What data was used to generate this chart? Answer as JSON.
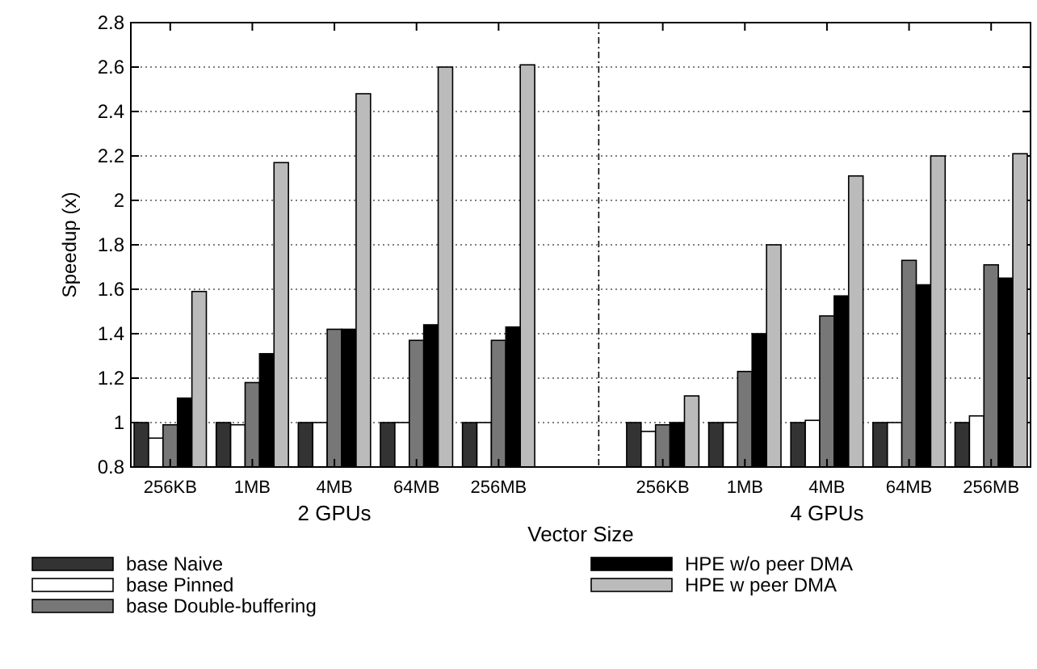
{
  "chart_data": {
    "type": "bar",
    "xlabel": "Vector Size",
    "ylabel": "Speedup (x)",
    "categories": [
      "256KB",
      "1MB",
      "4MB",
      "64MB",
      "256MB",
      null,
      "256KB",
      "1MB",
      "4MB",
      "64MB",
      "256MB"
    ],
    "series": [
      {
        "name": "base Naive",
        "color": "#333333",
        "values": [
          1,
          1,
          1,
          1,
          1,
          null,
          1,
          1,
          1,
          1,
          1
        ]
      },
      {
        "name": "base Pinned",
        "color": "#ffffff",
        "values": [
          0.93,
          0.99,
          1,
          1,
          1,
          null,
          0.96,
          1,
          1.01,
          1,
          1.03
        ]
      },
      {
        "name": "base Double-buffering",
        "color": "#777777",
        "values": [
          0.99,
          1.18,
          1.42,
          1.37,
          1.37,
          null,
          0.99,
          1.23,
          1.48,
          1.73,
          1.71
        ]
      },
      {
        "name": "HPE w/o peer DMA",
        "color": "#000000",
        "values": [
          1.11,
          1.31,
          1.42,
          1.44,
          1.43,
          null,
          1,
          1.4,
          1.57,
          1.62,
          1.65
        ]
      },
      {
        "name": "HPE w peer DMA",
        "color": "#bbbbbb",
        "values": [
          1.59,
          2.17,
          2.48,
          2.6,
          2.61,
          null,
          1.12,
          1.8,
          2.11,
          2.2,
          2.21
        ]
      }
    ],
    "ylim": [
      0.8,
      2.8
    ],
    "yticks": [
      0.8,
      1,
      1.2,
      1.4,
      1.6,
      1.8,
      2,
      2.2,
      2.4,
      2.6,
      2.8
    ],
    "grid": "y",
    "legend": "bottom",
    "annotations": [
      "2 GPUs",
      "4 GPUs"
    ]
  }
}
